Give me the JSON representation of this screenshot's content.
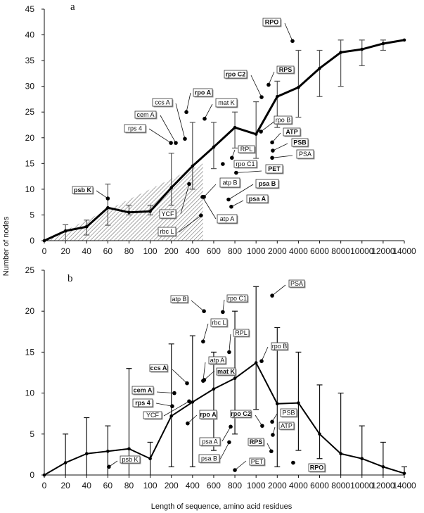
{
  "chart_data": [
    {
      "type": "line",
      "panel": "a",
      "ylabel": "Number of nodes",
      "xlabel": "Length of sequence, amino acid residues",
      "categories": [
        "0",
        "20",
        "40",
        "60",
        "80",
        "100",
        "200",
        "400",
        "600",
        "800",
        "1000",
        "2000",
        "4000",
        "6000",
        "8000",
        "10000",
        "12000",
        "14000"
      ],
      "ylim": [
        0,
        45
      ],
      "yticks": [
        "0",
        "5",
        "10",
        "15",
        "20",
        "25",
        "30",
        "35",
        "40",
        "45"
      ],
      "values": [
        0,
        1.9,
        2.7,
        6.4,
        5.5,
        5.7,
        10.3,
        14.5,
        18.2,
        22,
        20.7,
        28,
        29.8,
        33.5,
        36.6,
        37.2,
        38.3,
        39
      ],
      "error_low": [
        null,
        0,
        1.1,
        3,
        5,
        5,
        6.9,
        10,
        14,
        18,
        16,
        22,
        24,
        28,
        30,
        34,
        37,
        null
      ],
      "error_high": [
        null,
        3.1,
        4,
        11,
        6.9,
        6.9,
        17,
        23,
        23,
        25,
        27,
        31,
        37,
        37,
        39,
        39,
        39,
        null
      ],
      "shaded_region": {
        "x_end": 500,
        "y_at_end": 15,
        "pattern": "hatched"
      },
      "points": [
        {
          "label": "rps 4",
          "x": 198,
          "y": 19,
          "bold": false
        },
        {
          "label": "cem A",
          "x": 242,
          "y": 19,
          "bold": false
        },
        {
          "label": "ccs A",
          "x": 328,
          "y": 19.8,
          "bold": false
        },
        {
          "label": "rpo A",
          "x": 342,
          "y": 25,
          "bold": true
        },
        {
          "label": "mat K",
          "x": 514,
          "y": 23.7,
          "bold": false
        },
        {
          "label": "psb K",
          "x": 60,
          "y": 8.2,
          "bold": true
        },
        {
          "label": "YCF",
          "x": 368,
          "y": 11,
          "bold": false
        },
        {
          "label": "rbc L",
          "x": 480,
          "y": 4.9,
          "bold": false
        },
        {
          "label": "atp B",
          "x": 508,
          "y": 8.5,
          "bold": false
        },
        {
          "label": "atp A",
          "x": 494,
          "y": 8.5,
          "bold": false
        },
        {
          "label": "RPL",
          "x": 772,
          "y": 16.1,
          "bold": false
        },
        {
          "label": "rpo C1",
          "x": 686,
          "y": 14.9,
          "bold": false
        },
        {
          "label": "PET",
          "x": 812,
          "y": 13.2,
          "bold": true
        },
        {
          "label": "psa B",
          "x": 740,
          "y": 8,
          "bold": true
        },
        {
          "label": "psa A",
          "x": 766,
          "y": 6.6,
          "bold": true
        },
        {
          "label": "rpo C2",
          "x": 1260,
          "y": 27.9,
          "bold": true
        },
        {
          "label": "RPS",
          "x": 1590,
          "y": 30.3,
          "bold": true
        },
        {
          "label": "RPO",
          "x": 3440,
          "y": 38.8,
          "bold": true
        },
        {
          "label": "rpo B",
          "x": 1230,
          "y": 21.2,
          "bold": false
        },
        {
          "label": "ATP",
          "x": 1760,
          "y": 19.1,
          "bold": true
        },
        {
          "label": "PSB",
          "x": 1790,
          "y": 17.5,
          "bold": true
        },
        {
          "label": "PSA",
          "x": 1760,
          "y": 16.1,
          "bold": false
        }
      ]
    },
    {
      "type": "line",
      "panel": "b",
      "categories": [
        "0",
        "20",
        "40",
        "60",
        "80",
        "100",
        "200",
        "400",
        "600",
        "800",
        "1000",
        "2000",
        "4000",
        "6000",
        "8000",
        "10000",
        "12000",
        "14000"
      ],
      "ylim": [
        0,
        25
      ],
      "yticks": [
        "0",
        "5",
        "10",
        "15",
        "20",
        "25"
      ],
      "values": [
        0,
        1.5,
        2.6,
        2.9,
        3.2,
        2.0,
        7.2,
        8.9,
        10.5,
        11.8,
        13.7,
        8.7,
        8.8,
        5.0,
        2.6,
        2.0,
        1.0,
        0.2
      ],
      "error_low": [
        null,
        0,
        0,
        0,
        0,
        0,
        1,
        1,
        3,
        5,
        8,
        1,
        3,
        2,
        0,
        0,
        0,
        0
      ],
      "error_high": [
        null,
        5,
        7,
        6,
        13,
        4,
        16,
        17,
        15,
        20,
        23,
        18,
        15,
        11,
        10,
        6,
        4,
        1
      ],
      "points": [
        {
          "label": "atp B",
          "x": 508,
          "y": 20,
          "bold": false
        },
        {
          "label": "rpo C1",
          "x": 686,
          "y": 19.9,
          "bold": false
        },
        {
          "label": "rbc L",
          "x": 500,
          "y": 16.3,
          "bold": false
        },
        {
          "label": "RPL",
          "x": 746,
          "y": 15,
          "bold": false
        },
        {
          "label": "atp A",
          "x": 500,
          "y": 11.5,
          "bold": false
        },
        {
          "label": "mat K",
          "x": 510,
          "y": 11.6,
          "bold": true
        },
        {
          "label": "ccs A",
          "x": 348,
          "y": 11.2,
          "bold": true
        },
        {
          "label": "cem A",
          "x": 228,
          "y": 10,
          "bold": true
        },
        {
          "label": "rps 4",
          "x": 208,
          "y": 8.4,
          "bold": true
        },
        {
          "label": "YCF",
          "x": 368,
          "y": 9,
          "bold": false
        },
        {
          "label": "rpo A",
          "x": 354,
          "y": 6.3,
          "bold": true
        },
        {
          "label": "psb K",
          "x": 61,
          "y": 1,
          "bold": false
        },
        {
          "label": "psa A",
          "x": 760,
          "y": 5.9,
          "bold": false
        },
        {
          "label": "psa B",
          "x": 746,
          "y": 4,
          "bold": false
        },
        {
          "label": "rpo C2",
          "x": 1290,
          "y": 6,
          "bold": true
        },
        {
          "label": "PET",
          "x": 800,
          "y": 0.6,
          "bold": false
        },
        {
          "label": "PSA",
          "x": 1760,
          "y": 21.9,
          "bold": false
        },
        {
          "label": "rpo B",
          "x": 1260,
          "y": 13.9,
          "bold": false
        },
        {
          "label": "PSB",
          "x": 1760,
          "y": 6.5,
          "bold": false
        },
        {
          "label": "ATP",
          "x": 1790,
          "y": 4.9,
          "bold": false
        },
        {
          "label": "RPS",
          "x": 1720,
          "y": 2.9,
          "bold": true
        },
        {
          "label": "RPO",
          "x": 3500,
          "y": 1.5,
          "bold": true
        }
      ]
    }
  ]
}
